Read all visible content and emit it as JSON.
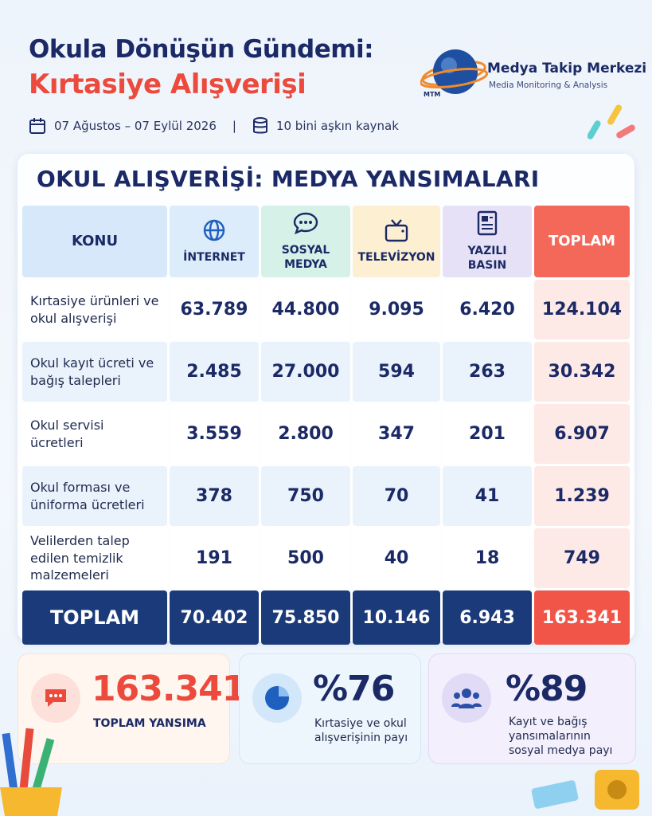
{
  "header": {
    "title_line1": "Okula Dönüşün Gündemi:",
    "title_line2": "Kırtasiye Alışverişi",
    "date_range": "07 Ağustos – 07 Eylül 2026",
    "separator": "|",
    "sources": "10 bini aşkın kaynak"
  },
  "logo": {
    "mark": "MTM",
    "name": "Medya Takip Merkezi",
    "tagline": "Media Monitoring & Analysis"
  },
  "table": {
    "title": "OKUL ALIŞVERİŞİ: MEDYA YANSIMALARI",
    "columns": [
      "KONU",
      "İNTERNET",
      "SOSYAL MEDYA",
      "TELEVİZYON",
      "YAZILI BASIN",
      "TOPLAM"
    ],
    "rows": [
      [
        "Kırtasiye ürünleri ve okul alışverişi",
        "63.789",
        "44.800",
        "9.095",
        "6.420",
        "124.104"
      ],
      [
        "Okul kayıt ücreti ve bağış talepleri",
        "2.485",
        "27.000",
        "594",
        "263",
        "30.342"
      ],
      [
        "Okul servisi ücretleri",
        "3.559",
        "2.800",
        "347",
        "201",
        "6.907"
      ],
      [
        "Okul forması ve üniforma ücretleri",
        "378",
        "750",
        "70",
        "41",
        "1.239"
      ],
      [
        "Velilerden talep edilen temizlik malzemeleri",
        "191",
        "500",
        "40",
        "18",
        "749"
      ]
    ],
    "total_row": [
      "TOPLAM",
      "70.402",
      "75.850",
      "10.146",
      "6.943",
      "163.341"
    ]
  },
  "cards": [
    {
      "value": "163.341",
      "label": "TOPLAM YANSIMA"
    },
    {
      "value": "%76",
      "label": "Kırtasiye ve okul alışverişinin payı"
    },
    {
      "value": "%89",
      "label": "Kayıt ve bağış yansımalarının sosyal medya payı"
    }
  ]
}
